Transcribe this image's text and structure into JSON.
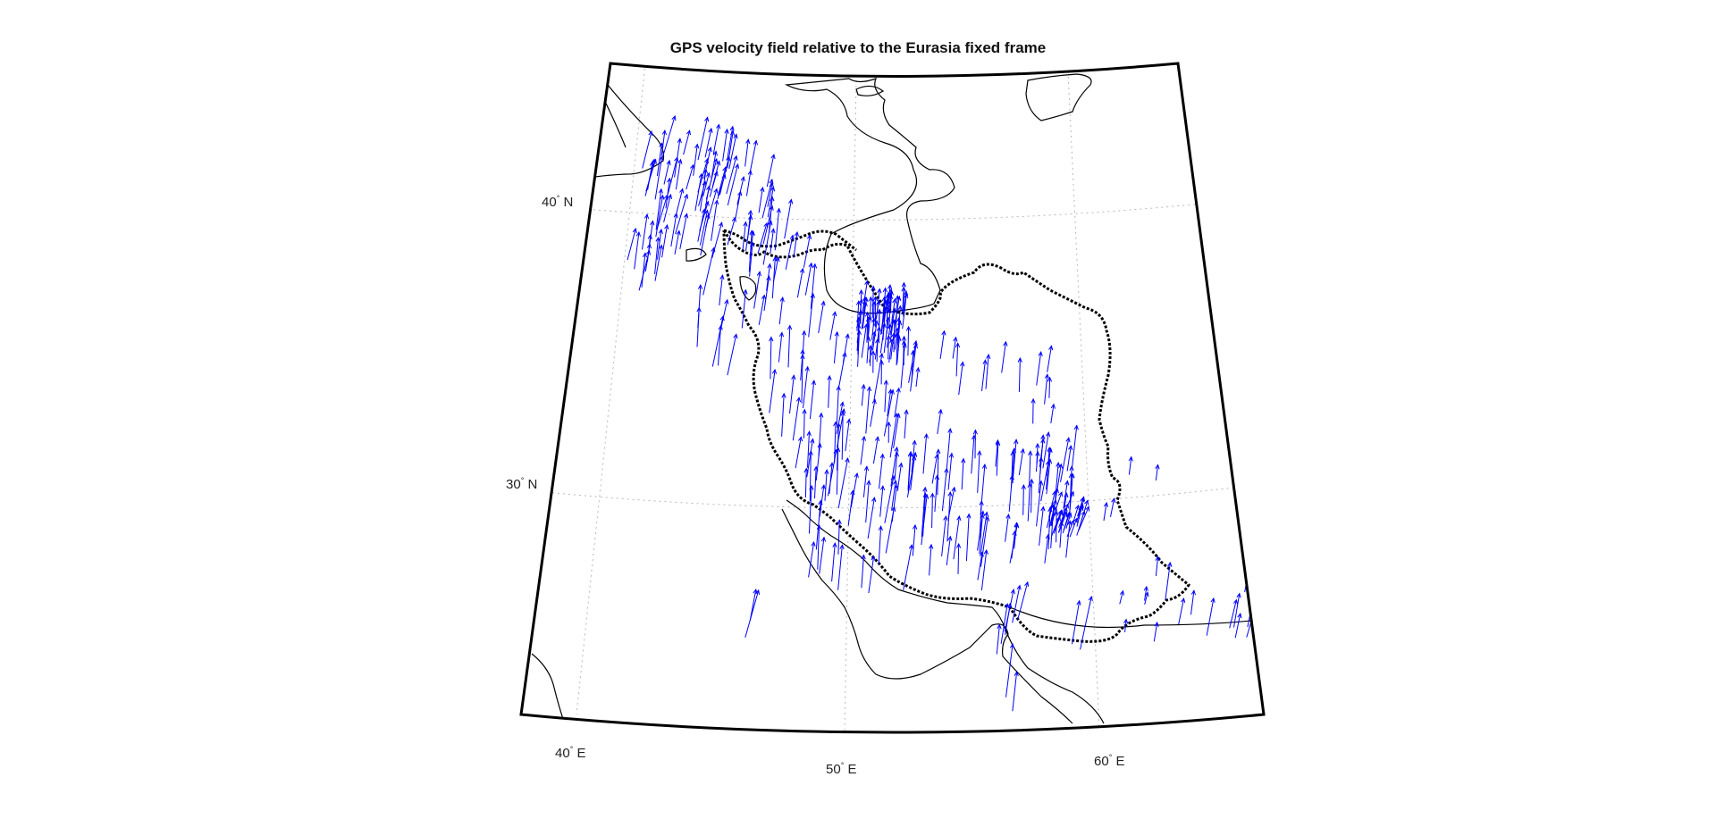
{
  "title": "GPS velocity field relative to the Eurasia fixed frame",
  "colors": {
    "vector": "#0000ff",
    "coast": "#000000",
    "border": "#000000",
    "grid": "#b8b8b8",
    "frame": "#000000"
  },
  "map": {
    "projection": "conic",
    "lon_range": [
      37,
      64
    ],
    "lat_range": [
      23,
      44
    ],
    "grid": true
  },
  "graticule_labels": {
    "lat": [
      {
        "deg": "40",
        "hemi": "N"
      },
      {
        "deg": "30",
        "hemi": "N"
      }
    ],
    "lon": [
      {
        "deg": "40",
        "hemi": "E"
      },
      {
        "deg": "50",
        "hemi": "E"
      },
      {
        "deg": "60",
        "hemi": "E"
      }
    ]
  }
}
